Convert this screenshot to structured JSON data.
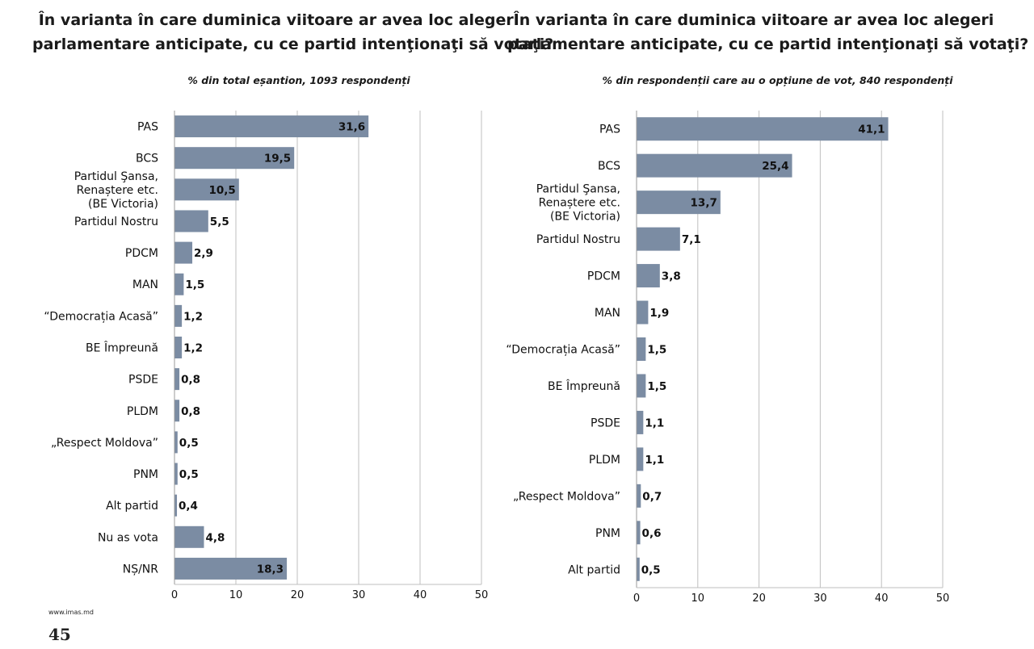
{
  "page": {
    "source": "www.imas.md",
    "page_number": "45"
  },
  "chart_data": [
    {
      "type": "bar",
      "orientation": "horizontal",
      "title": "În varianta în care duminica viitoare ar avea loc alegeri parlamentare anticipate, cu ce partid intenţionaţi să votaţi?",
      "title_lines": [
        "În varianta în care duminica viitoare ar avea loc alegeri",
        "parlamentare anticipate, cu ce partid intenţionaţi să votaţi?"
      ],
      "subtitle": "% din total eșantion, 1093 respondenți",
      "categories": [
        "PAS",
        "BCS",
        "Partidul Şansa, Renaștere etc. (BE Victoria)",
        "Partidul Nostru",
        "PDCM",
        "MAN",
        "“Democrația Acasă”",
        "BE Împreună",
        "PSDE",
        "PLDM",
        "„Respect Moldova”",
        "PNM",
        "Alt partid",
        "Nu as vota",
        "NȘ/NR"
      ],
      "category_lines": [
        [
          "PAS"
        ],
        [
          "BCS"
        ],
        [
          "Partidul Şansa,",
          "Renaștere etc.",
          "(BE Victoria)"
        ],
        [
          "Partidul Nostru"
        ],
        [
          "PDCM"
        ],
        [
          "MAN"
        ],
        [
          "“Democrația Acasă”"
        ],
        [
          "BE Împreună"
        ],
        [
          "PSDE"
        ],
        [
          "PLDM"
        ],
        [
          "„Respect Moldova”"
        ],
        [
          "PNM"
        ],
        [
          "Alt partid"
        ],
        [
          "Nu as vota"
        ],
        [
          "NȘ/NR"
        ]
      ],
      "values": [
        31.6,
        19.5,
        10.5,
        5.5,
        2.9,
        1.5,
        1.2,
        1.2,
        0.8,
        0.8,
        0.5,
        0.5,
        0.4,
        4.8,
        18.3
      ],
      "value_labels": [
        "31,6",
        "19,5",
        "10,5",
        "5,5",
        "2,9",
        "1,5",
        "1,2",
        "1,2",
        "0,8",
        "0,8",
        "0,5",
        "0,5",
        "0,4",
        "4,8",
        "18,3"
      ],
      "xlim": [
        0,
        50
      ],
      "xticks": [
        0,
        10,
        20,
        30,
        40,
        50
      ],
      "grid": true,
      "bar_color": "#7b8ca3"
    },
    {
      "type": "bar",
      "orientation": "horizontal",
      "title": "În varianta în care duminica viitoare ar avea loc alegeri parlamentare anticipate, cu ce partid intenţionaţi să votaţi?",
      "title_lines": [
        "În varianta în care duminica viitoare ar avea loc alegeri",
        "parlamentare anticipate, cu ce partid intenţionaţi să votaţi?"
      ],
      "subtitle": "% din respondenții care au o opțiune de vot, 840 respondenți",
      "categories": [
        "PAS",
        "BCS",
        "Partidul Şansa, Renaștere etc. (BE Victoria)",
        "Partidul Nostru",
        "PDCM",
        "MAN",
        "“Democrația Acasă”",
        "BE Împreună",
        "PSDE",
        "PLDM",
        "„Respect Moldova”",
        "PNM",
        "Alt partid"
      ],
      "category_lines": [
        [
          "PAS"
        ],
        [
          "BCS"
        ],
        [
          "Partidul Şansa,",
          "Renaștere etc.",
          "(BE Victoria)"
        ],
        [
          "Partidul Nostru"
        ],
        [
          "PDCM"
        ],
        [
          "MAN"
        ],
        [
          "“Democrația Acasă”"
        ],
        [
          "BE Împreună"
        ],
        [
          "PSDE"
        ],
        [
          "PLDM"
        ],
        [
          "„Respect Moldova”"
        ],
        [
          "PNM"
        ],
        [
          "Alt partid"
        ]
      ],
      "values": [
        41.1,
        25.4,
        13.7,
        7.1,
        3.8,
        1.9,
        1.5,
        1.5,
        1.1,
        1.1,
        0.7,
        0.6,
        0.5
      ],
      "value_labels": [
        "41,1",
        "25,4",
        "13,7",
        "7,1",
        "3,8",
        "1,9",
        "1,5",
        "1,5",
        "1,1",
        "1,1",
        "0,7",
        "0,6",
        "0,5"
      ],
      "xlim": [
        0,
        50
      ],
      "xticks": [
        0,
        10,
        20,
        30,
        40,
        50
      ],
      "grid": true,
      "bar_color": "#7b8ca3"
    }
  ]
}
